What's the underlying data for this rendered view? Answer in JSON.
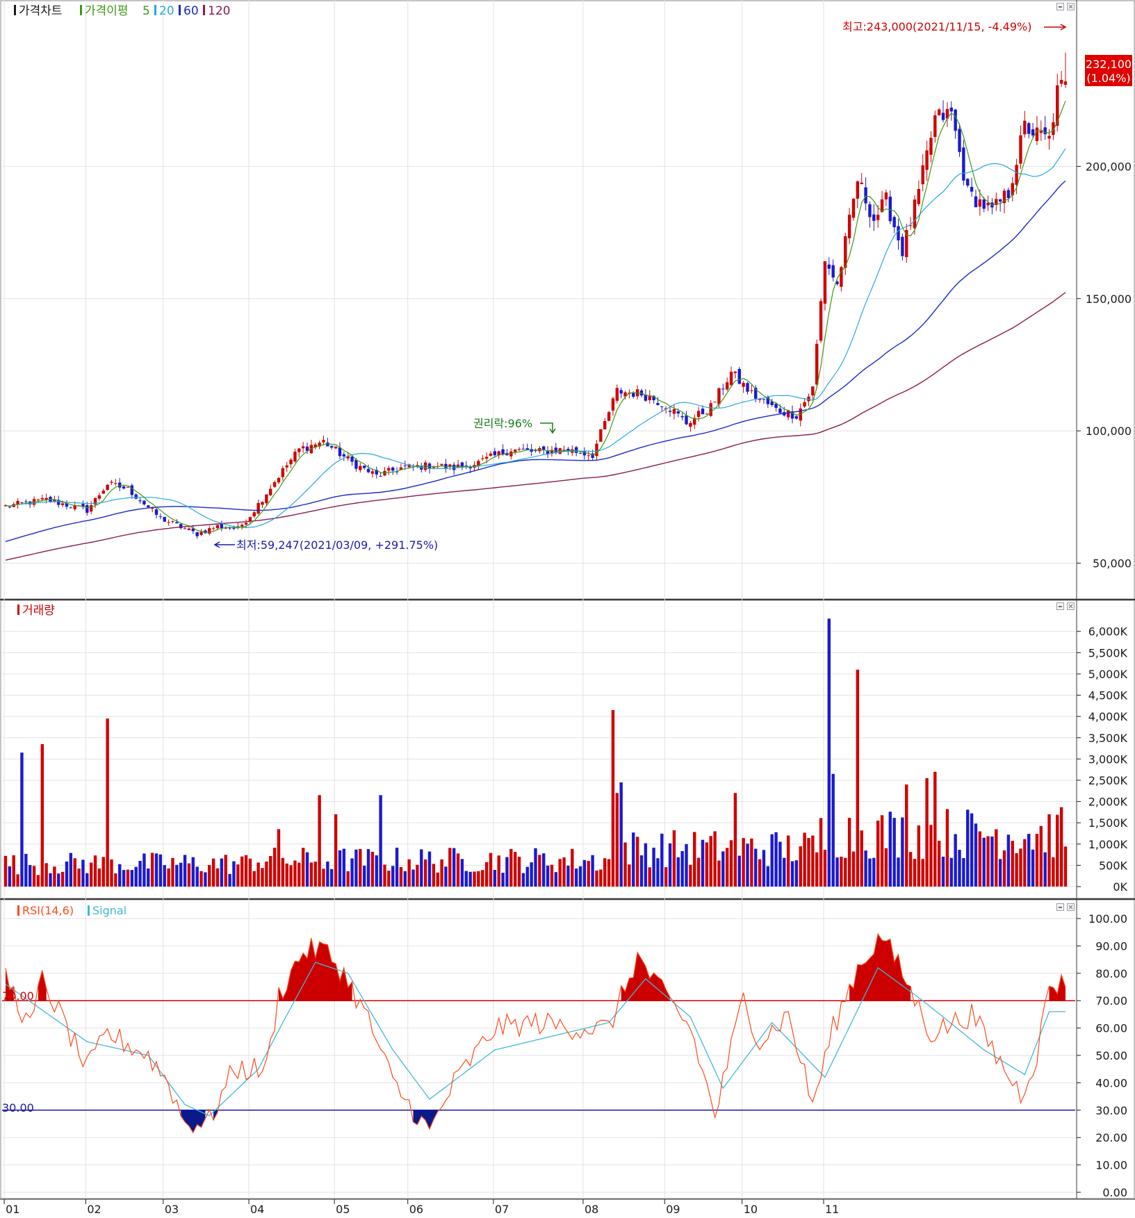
{
  "colors": {
    "up": "#d00000",
    "down": "#1a1ad0",
    "ma5": "#3a9a14",
    "ma20": "#28a8e0",
    "ma60": "#1a2acc",
    "ma120": "#8a1a50",
    "grid": "#e2e2e2",
    "axis": "#1a1a1a",
    "rsi": "#ff4a1a",
    "signal": "#40b8d8",
    "rsi_fill_over": "#cc0000",
    "rsi_fill_under": "#0a1a8a",
    "level_line_over": "#cc0000",
    "level_line_under": "#1a1aa0",
    "annotation_max": "#d00000",
    "annotation_min": "#1a1ab0",
    "annotation_rights": "#1a7a1a",
    "price_tag_bg": "#e00000"
  },
  "price_panel": {
    "legend": {
      "title": "가격차트",
      "ma_title": "가격이평",
      "ma_periods": [
        "5",
        "20",
        "60",
        "120"
      ]
    },
    "y_ticks": [
      {
        "value": 50000,
        "label": "50,000"
      },
      {
        "value": 100000,
        "label": "100,000"
      },
      {
        "value": 150000,
        "label": "150,000"
      },
      {
        "value": 200000,
        "label": "200,000"
      }
    ],
    "current_price_label": "232,100",
    "current_change_label": "(1.04%)",
    "max_annotation": "최고:243,000(2021/11/15, -4.49%)",
    "min_annotation": "최저:59,247(2021/03/09, +291.75%)",
    "rights_annotation": "권리락:96%"
  },
  "volume_panel": {
    "legend": {
      "title": "거래량"
    },
    "y_ticks": [
      {
        "value": 0,
        "label": "0K"
      },
      {
        "value": 500,
        "label": "500K"
      },
      {
        "value": 1000,
        "label": "1,000K"
      },
      {
        "value": 1500,
        "label": "1,500K"
      },
      {
        "value": 2000,
        "label": "2,000K"
      },
      {
        "value": 2500,
        "label": "2,500K"
      },
      {
        "value": 3000,
        "label": "3,000K"
      },
      {
        "value": 3500,
        "label": "3,500K"
      },
      {
        "value": 4000,
        "label": "4,000K"
      },
      {
        "value": 4500,
        "label": "4,500K"
      },
      {
        "value": 5000,
        "label": "5,000K"
      },
      {
        "value": 5500,
        "label": "5,500K"
      },
      {
        "value": 6000,
        "label": "6,000K"
      }
    ]
  },
  "rsi_panel": {
    "legend": {
      "rsi_title": "RSI(14,6)",
      "signal_title": "Signal"
    },
    "y_ticks": [
      {
        "value": 0,
        "label": "0.00"
      },
      {
        "value": 10,
        "label": "10.00"
      },
      {
        "value": 20,
        "label": "20.00"
      },
      {
        "value": 30,
        "label": "30.00"
      },
      {
        "value": 40,
        "label": "40.00"
      },
      {
        "value": 50,
        "label": "50.00"
      },
      {
        "value": 60,
        "label": "60.00"
      },
      {
        "value": 70,
        "label": "70.00"
      },
      {
        "value": 80,
        "label": "80.00"
      },
      {
        "value": 90,
        "label": "90.00"
      },
      {
        "value": 100,
        "label": "100.00"
      }
    ],
    "upper_level": 70,
    "lower_level": 30,
    "upper_level_label": "70.00",
    "lower_level_label": "30.00"
  },
  "x_axis": {
    "month_labels": [
      "01",
      "02",
      "03",
      "04",
      "05",
      "06",
      "07",
      "08",
      "09",
      "10",
      "11"
    ]
  },
  "chart_data": [
    {
      "type": "candlestick",
      "series": [
        {
          "name": "가격차트",
          "points": [
            {
              "day": 0,
              "close": 71500
            },
            {
              "day": 10,
              "close": 74000
            },
            {
              "day": 20,
              "close": 70000
            },
            {
              "day": 25,
              "close": 80000
            },
            {
              "day": 30,
              "close": 78000
            },
            {
              "day": 38,
              "close": 67000
            },
            {
              "day": 47,
              "close": 61000
            },
            {
              "day": 52,
              "close": 64000
            },
            {
              "day": 57,
              "close": 63000
            },
            {
              "day": 60,
              "close": 68000
            },
            {
              "day": 67,
              "close": 83000
            },
            {
              "day": 72,
              "close": 93000
            },
            {
              "day": 78,
              "close": 96000
            },
            {
              "day": 85,
              "close": 88000
            },
            {
              "day": 91,
              "close": 83000
            },
            {
              "day": 97,
              "close": 86000
            },
            {
              "day": 105,
              "close": 87000
            },
            {
              "day": 110,
              "close": 86000
            },
            {
              "day": 116,
              "close": 88000
            },
            {
              "day": 124,
              "close": 93000
            },
            {
              "day": 130,
              "close": 92000
            },
            {
              "day": 137,
              "close": 93000
            },
            {
              "day": 144,
              "close": 91000
            },
            {
              "day": 150,
              "close": 115000
            },
            {
              "day": 156,
              "close": 114000
            },
            {
              "day": 162,
              "close": 110000
            },
            {
              "day": 167,
              "close": 103000
            },
            {
              "day": 173,
              "close": 109000
            },
            {
              "day": 178,
              "close": 122000
            },
            {
              "day": 183,
              "close": 114000
            },
            {
              "day": 189,
              "close": 108000
            },
            {
              "day": 194,
              "close": 106000
            },
            {
              "day": 198,
              "close": 116000
            },
            {
              "day": 201,
              "close": 165000
            },
            {
              "day": 204,
              "close": 155000
            },
            {
              "day": 209,
              "close": 195000
            },
            {
              "day": 213,
              "close": 180000
            },
            {
              "day": 216,
              "close": 187000
            },
            {
              "day": 220,
              "close": 168000
            },
            {
              "day": 224,
              "close": 190000
            },
            {
              "day": 228,
              "close": 218000
            },
            {
              "day": 232,
              "close": 220000
            },
            {
              "day": 236,
              "close": 190000
            },
            {
              "day": 242,
              "close": 183000
            },
            {
              "day": 246,
              "close": 190000
            },
            {
              "day": 250,
              "close": 215000
            },
            {
              "day": 253,
              "close": 212000
            },
            {
              "day": 256,
              "close": 210000
            },
            {
              "day": 258,
              "close": 228000
            },
            {
              "day": 260,
              "close": 232100
            }
          ]
        },
        {
          "name": "5",
          "values": []
        },
        {
          "name": "20",
          "values": []
        },
        {
          "name": "60",
          "values": []
        },
        {
          "name": "120",
          "values": []
        }
      ],
      "ylim": [
        37000,
        255000
      ],
      "grid": true
    },
    {
      "type": "bar",
      "series": [
        {
          "name": "거래량",
          "points": [
            {
              "day": 4,
              "value": 3150
            },
            {
              "day": 9,
              "value": 3350
            },
            {
              "day": 25,
              "value": 3950
            },
            {
              "day": 67,
              "value": 1350
            },
            {
              "day": 77,
              "value": 2150
            },
            {
              "day": 81,
              "value": 1700
            },
            {
              "day": 92,
              "value": 2150
            },
            {
              "day": 149,
              "value": 4150
            },
            {
              "day": 150,
              "value": 2200
            },
            {
              "day": 151,
              "value": 2450
            },
            {
              "day": 179,
              "value": 2200
            },
            {
              "day": 202,
              "value": 6300
            },
            {
              "day": 203,
              "value": 2650
            },
            {
              "day": 209,
              "value": 5100
            },
            {
              "day": 221,
              "value": 2400
            },
            {
              "day": 226,
              "value": 2550
            },
            {
              "day": 228,
              "value": 2700
            }
          ]
        }
      ],
      "ylim": [
        0,
        6600
      ],
      "grid": true
    },
    {
      "type": "line",
      "series": [
        {
          "name": "RSI(14,6)",
          "points": [
            {
              "day": 0,
              "value": 79
            },
            {
              "day": 6,
              "value": 60
            },
            {
              "day": 9,
              "value": 78
            },
            {
              "day": 20,
              "value": 45
            },
            {
              "day": 25,
              "value": 58
            },
            {
              "day": 35,
              "value": 50
            },
            {
              "day": 40,
              "value": 40
            },
            {
              "day": 44,
              "value": 25
            },
            {
              "day": 50,
              "value": 26
            },
            {
              "day": 56,
              "value": 45
            },
            {
              "day": 64,
              "value": 45
            },
            {
              "day": 67,
              "value": 72
            },
            {
              "day": 73,
              "value": 88
            },
            {
              "day": 78,
              "value": 89
            },
            {
              "day": 83,
              "value": 80
            },
            {
              "day": 89,
              "value": 63
            },
            {
              "day": 95,
              "value": 40
            },
            {
              "day": 104,
              "value": 22
            },
            {
              "day": 110,
              "value": 40
            },
            {
              "day": 120,
              "value": 60
            },
            {
              "day": 130,
              "value": 62
            },
            {
              "day": 140,
              "value": 60
            },
            {
              "day": 148,
              "value": 60
            },
            {
              "day": 155,
              "value": 86
            },
            {
              "day": 160,
              "value": 75
            },
            {
              "day": 168,
              "value": 60
            },
            {
              "day": 174,
              "value": 28
            },
            {
              "day": 181,
              "value": 71
            },
            {
              "day": 185,
              "value": 55
            },
            {
              "day": 192,
              "value": 65
            },
            {
              "day": 198,
              "value": 32
            },
            {
              "day": 203,
              "value": 60
            },
            {
              "day": 209,
              "value": 82
            },
            {
              "day": 215,
              "value": 94
            },
            {
              "day": 220,
              "value": 80
            },
            {
              "day": 227,
              "value": 58
            },
            {
              "day": 237,
              "value": 65
            },
            {
              "day": 245,
              "value": 45
            },
            {
              "day": 249,
              "value": 36
            },
            {
              "day": 253,
              "value": 50
            },
            {
              "day": 256,
              "value": 76
            }
          ]
        },
        {
          "name": "Signal",
          "points": [
            {
              "day": 0,
              "value": 76
            },
            {
              "day": 20,
              "value": 55
            },
            {
              "day": 35,
              "value": 50
            },
            {
              "day": 44,
              "value": 32
            },
            {
              "day": 50,
              "value": 28
            },
            {
              "day": 62,
              "value": 45
            },
            {
              "day": 68,
              "value": 62
            },
            {
              "day": 76,
              "value": 84
            },
            {
              "day": 84,
              "value": 80
            },
            {
              "day": 95,
              "value": 52
            },
            {
              "day": 104,
              "value": 34
            },
            {
              "day": 120,
              "value": 52
            },
            {
              "day": 148,
              "value": 62
            },
            {
              "day": 157,
              "value": 78
            },
            {
              "day": 168,
              "value": 64
            },
            {
              "day": 176,
              "value": 38
            },
            {
              "day": 188,
              "value": 62
            },
            {
              "day": 201,
              "value": 42
            },
            {
              "day": 214,
              "value": 82
            },
            {
              "day": 225,
              "value": 70
            },
            {
              "day": 240,
              "value": 52
            },
            {
              "day": 250,
              "value": 43
            },
            {
              "day": 256,
              "value": 66
            }
          ]
        }
      ],
      "ylim": [
        0,
        100
      ],
      "grid": true
    }
  ]
}
